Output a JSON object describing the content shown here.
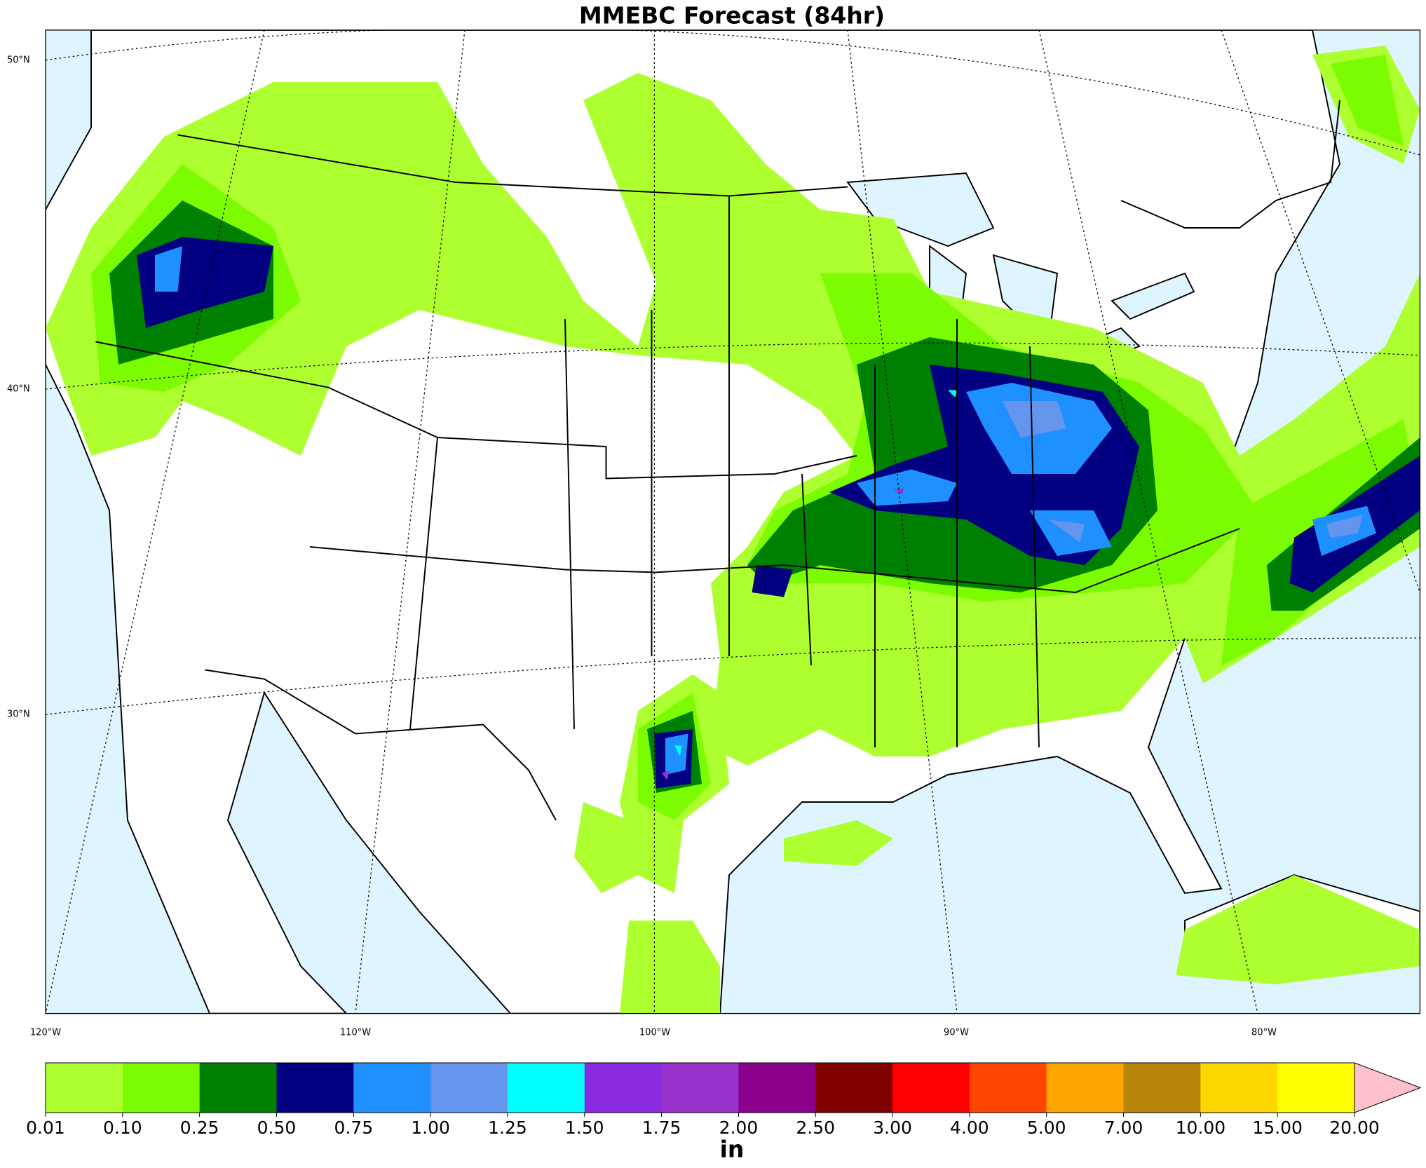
{
  "title": "MMEBC Forecast (84hr)",
  "lat_labels": [
    "50°N",
    "40°N",
    "30°N"
  ],
  "lon_labels": [
    "120°W",
    "110°W",
    "100°W",
    "90°W",
    "80°W"
  ],
  "colorbar": {
    "levels": [
      "0.01",
      "0.10",
      "0.25",
      "0.50",
      "0.75",
      "1.00",
      "1.25",
      "1.50",
      "1.75",
      "2.00",
      "2.50",
      "3.00",
      "4.00",
      "5.00",
      "7.00",
      "10.00",
      "15.00",
      "20.00"
    ],
    "colors": [
      "#adff2f",
      "#7cfc00",
      "#008000",
      "#000080",
      "#1e90ff",
      "#6495ed",
      "#00ffff",
      "#8a2be2",
      "#9932cc",
      "#8b008b",
      "#800000",
      "#ff0000",
      "#ff4500",
      "#ffa500",
      "#b8860b",
      "#ffd700",
      "#ffff00",
      "#ffc0cb"
    ],
    "unit": "in"
  }
}
